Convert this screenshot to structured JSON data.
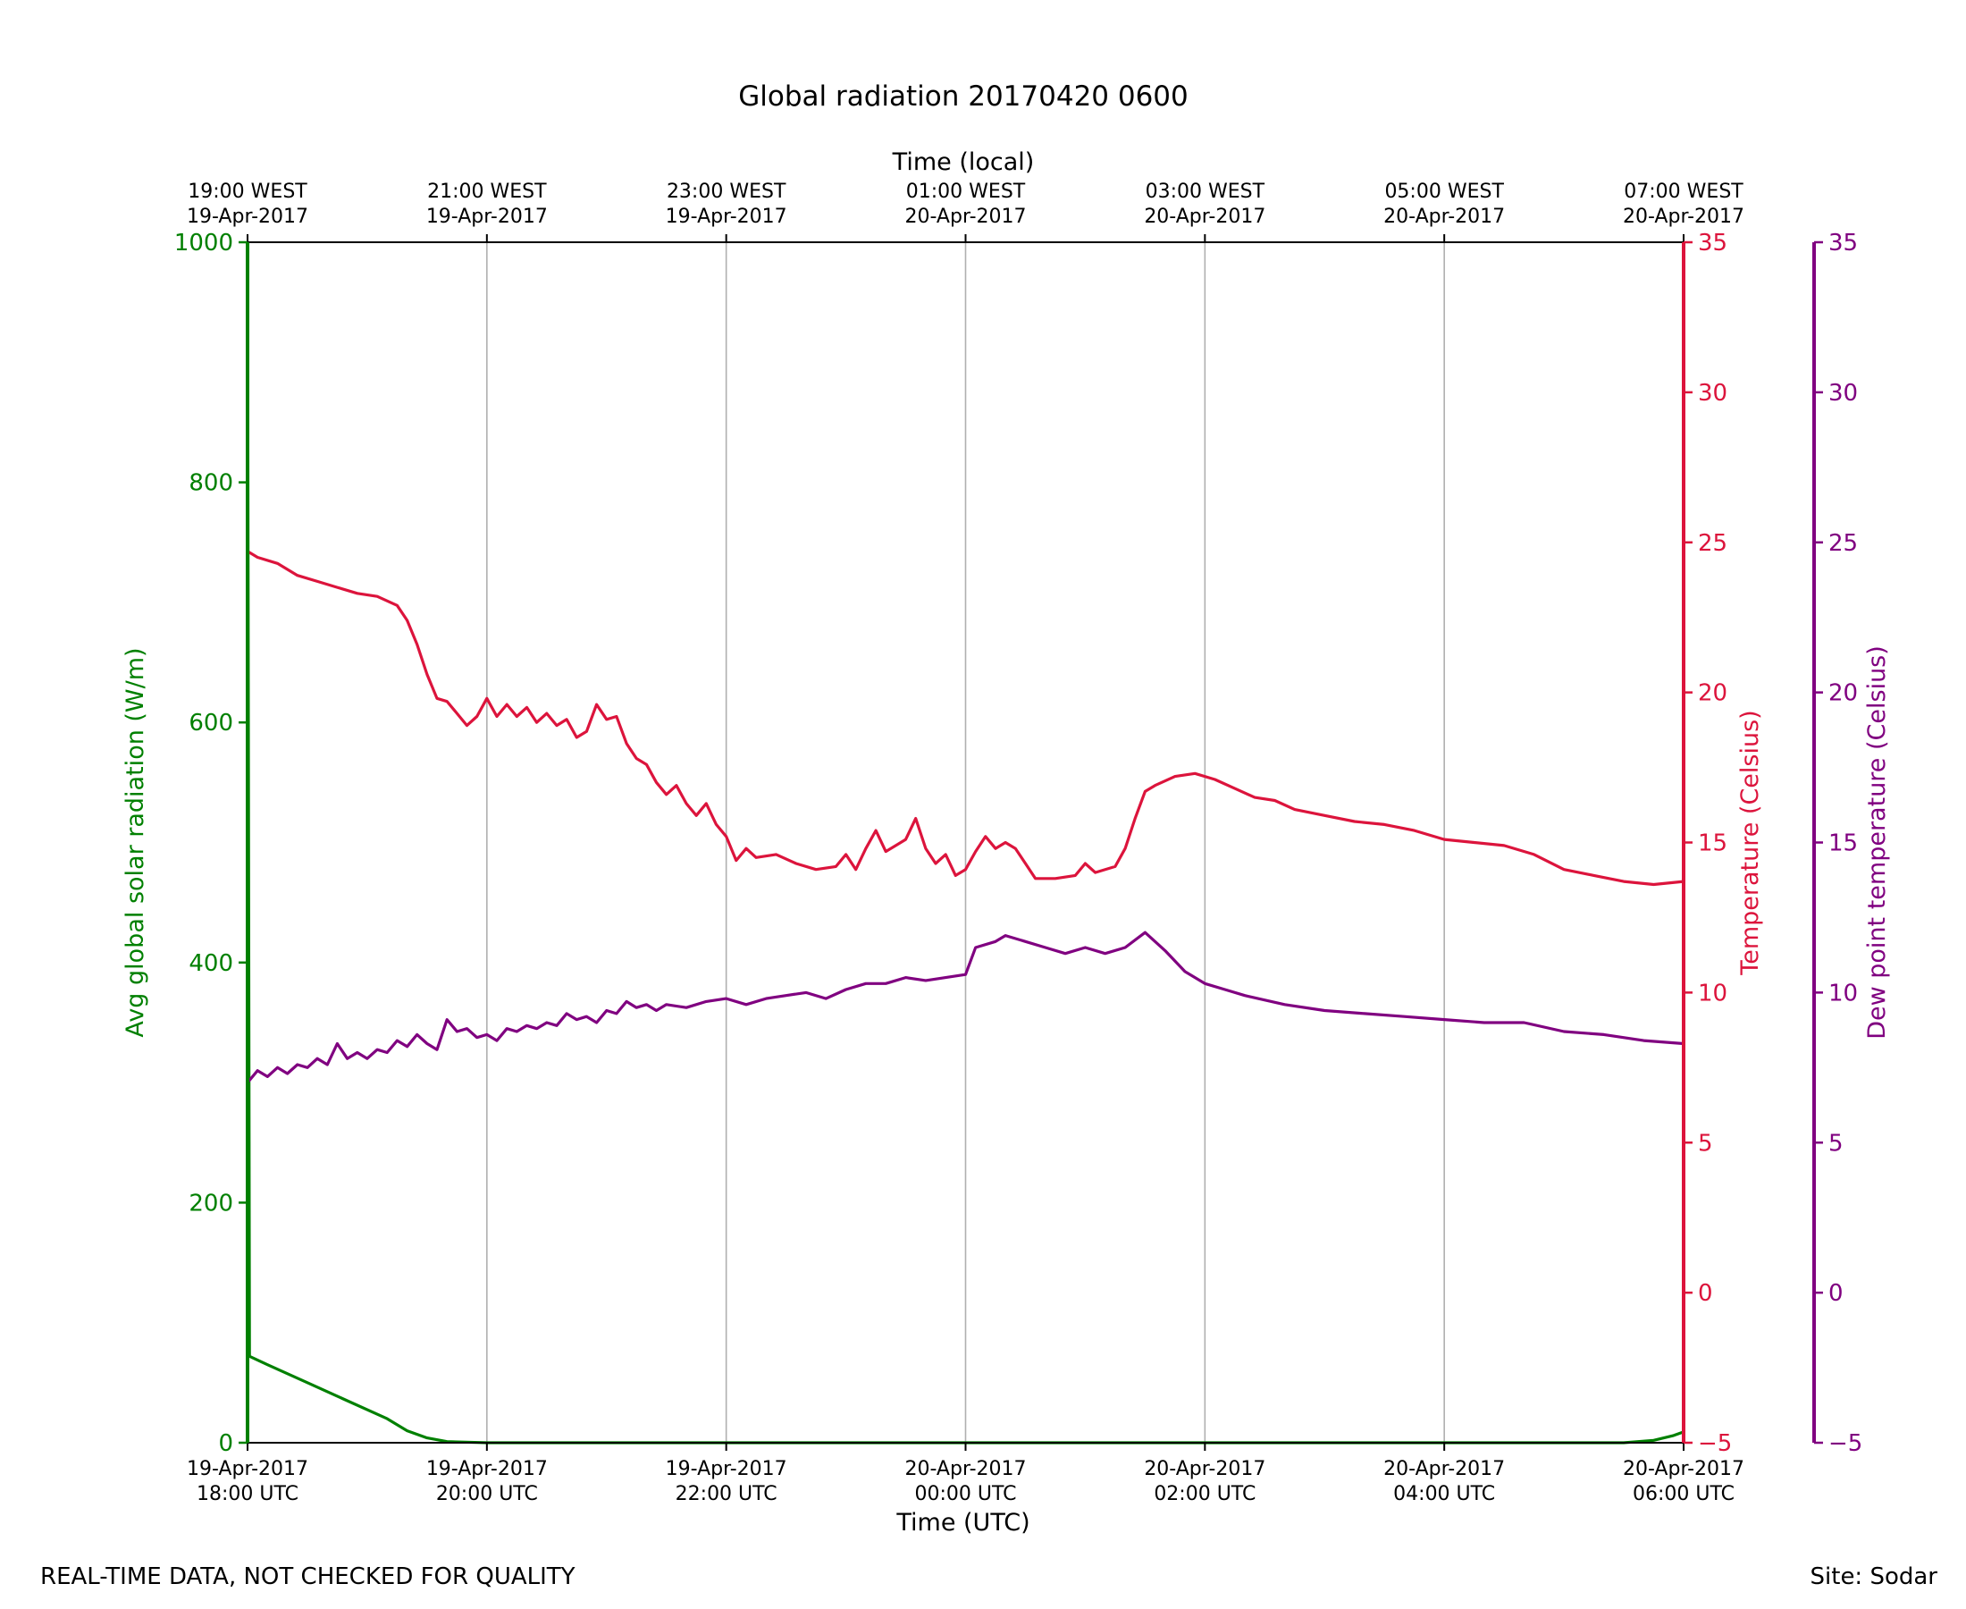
{
  "footer": {
    "note": "REAL-TIME DATA, NOT CHECKED FOR QUALITY",
    "site": "Site: Sodar"
  },
  "chart_data": {
    "type": "line",
    "title": "Global radiation 20170420 0600",
    "xlabel": "Time (UTC)",
    "x2label": "Time (local)",
    "xlim": [
      "2017-04-19T18:00",
      "2017-04-20T06:00"
    ],
    "x_ticks": [
      {
        "x": "2017-04-19T18:00",
        "label": [
          "19-Apr-2017",
          "18:00 UTC"
        ]
      },
      {
        "x": "2017-04-19T20:00",
        "label": [
          "19-Apr-2017",
          "20:00 UTC"
        ]
      },
      {
        "x": "2017-04-19T22:00",
        "label": [
          "19-Apr-2017",
          "22:00 UTC"
        ]
      },
      {
        "x": "2017-04-20T00:00",
        "label": [
          "20-Apr-2017",
          "00:00 UTC"
        ]
      },
      {
        "x": "2017-04-20T02:00",
        "label": [
          "20-Apr-2017",
          "02:00 UTC"
        ]
      },
      {
        "x": "2017-04-20T04:00",
        "label": [
          "20-Apr-2017",
          "04:00 UTC"
        ]
      },
      {
        "x": "2017-04-20T06:00",
        "label": [
          "20-Apr-2017",
          "06:00 UTC"
        ]
      }
    ],
    "x2_ticks": [
      {
        "x": "2017-04-19T18:00",
        "label": [
          "19:00 WEST",
          "19-Apr-2017"
        ]
      },
      {
        "x": "2017-04-19T20:00",
        "label": [
          "21:00 WEST",
          "19-Apr-2017"
        ]
      },
      {
        "x": "2017-04-19T22:00",
        "label": [
          "23:00 WEST",
          "19-Apr-2017"
        ]
      },
      {
        "x": "2017-04-20T00:00",
        "label": [
          "01:00 WEST",
          "20-Apr-2017"
        ]
      },
      {
        "x": "2017-04-20T02:00",
        "label": [
          "03:00 WEST",
          "20-Apr-2017"
        ]
      },
      {
        "x": "2017-04-20T04:00",
        "label": [
          "05:00 WEST",
          "20-Apr-2017"
        ]
      },
      {
        "x": "2017-04-20T06:00",
        "label": [
          "07:00 WEST",
          "20-Apr-2017"
        ]
      }
    ],
    "grid": "vertical",
    "axes": [
      {
        "id": "radiation",
        "side": "left",
        "label": "Avg global solar radiation (W/m)",
        "ylim": [
          0,
          1000
        ],
        "ticks": [
          0,
          200,
          400,
          600,
          800,
          1000
        ],
        "color": "#008000"
      },
      {
        "id": "temperature",
        "side": "right",
        "label": "Temperature (Celsius)",
        "ylim": [
          -5,
          35
        ],
        "ticks": [
          -5,
          0,
          5,
          10,
          15,
          20,
          25,
          30,
          35
        ],
        "color": "#dc143c"
      },
      {
        "id": "dewpoint",
        "side": "right-outer",
        "label": "Dew point temperature (Celsius)",
        "ylim": [
          -5,
          35
        ],
        "ticks": [
          -5,
          0,
          5,
          10,
          15,
          20,
          25,
          30,
          35
        ],
        "color": "#800080"
      }
    ],
    "series": [
      {
        "name": "Avg global solar radiation",
        "axis": "radiation",
        "color": "#008000",
        "points": [
          [
            "2017-04-19T18:00",
            1000
          ],
          [
            "2017-04-19T18:01",
            72
          ],
          [
            "2017-04-19T18:10",
            65
          ],
          [
            "2017-04-19T18:30",
            50
          ],
          [
            "2017-04-19T18:50",
            35
          ],
          [
            "2017-04-19T19:10",
            20
          ],
          [
            "2017-04-19T19:20",
            10
          ],
          [
            "2017-04-19T19:30",
            4
          ],
          [
            "2017-04-19T19:40",
            1
          ],
          [
            "2017-04-19T20:00",
            0
          ],
          [
            "2017-04-20T05:30",
            0
          ],
          [
            "2017-04-20T05:45",
            2
          ],
          [
            "2017-04-20T05:55",
            6
          ],
          [
            "2017-04-20T06:00",
            9
          ]
        ]
      },
      {
        "name": "Temperature",
        "axis": "temperature",
        "color": "#dc143c",
        "points": [
          [
            "2017-04-19T18:00",
            24.7
          ],
          [
            "2017-04-19T18:05",
            24.5
          ],
          [
            "2017-04-19T18:15",
            24.3
          ],
          [
            "2017-04-19T18:25",
            23.9
          ],
          [
            "2017-04-19T18:35",
            23.7
          ],
          [
            "2017-04-19T18:45",
            23.5
          ],
          [
            "2017-04-19T18:55",
            23.3
          ],
          [
            "2017-04-19T19:05",
            23.2
          ],
          [
            "2017-04-19T19:15",
            22.9
          ],
          [
            "2017-04-19T19:20",
            22.4
          ],
          [
            "2017-04-19T19:25",
            21.6
          ],
          [
            "2017-04-19T19:30",
            20.6
          ],
          [
            "2017-04-19T19:35",
            19.8
          ],
          [
            "2017-04-19T19:40",
            19.7
          ],
          [
            "2017-04-19T19:45",
            19.3
          ],
          [
            "2017-04-19T19:50",
            18.9
          ],
          [
            "2017-04-19T19:55",
            19.2
          ],
          [
            "2017-04-19T20:00",
            19.8
          ],
          [
            "2017-04-19T20:05",
            19.2
          ],
          [
            "2017-04-19T20:10",
            19.6
          ],
          [
            "2017-04-19T20:15",
            19.2
          ],
          [
            "2017-04-19T20:20",
            19.5
          ],
          [
            "2017-04-19T20:25",
            19.0
          ],
          [
            "2017-04-19T20:30",
            19.3
          ],
          [
            "2017-04-19T20:35",
            18.9
          ],
          [
            "2017-04-19T20:40",
            19.1
          ],
          [
            "2017-04-19T20:45",
            18.5
          ],
          [
            "2017-04-19T20:50",
            18.7
          ],
          [
            "2017-04-19T20:55",
            19.6
          ],
          [
            "2017-04-19T21:00",
            19.1
          ],
          [
            "2017-04-19T21:05",
            19.2
          ],
          [
            "2017-04-19T21:10",
            18.3
          ],
          [
            "2017-04-19T21:15",
            17.8
          ],
          [
            "2017-04-19T21:20",
            17.6
          ],
          [
            "2017-04-19T21:25",
            17.0
          ],
          [
            "2017-04-19T21:30",
            16.6
          ],
          [
            "2017-04-19T21:35",
            16.9
          ],
          [
            "2017-04-19T21:40",
            16.3
          ],
          [
            "2017-04-19T21:45",
            15.9
          ],
          [
            "2017-04-19T21:50",
            16.3
          ],
          [
            "2017-04-19T21:55",
            15.6
          ],
          [
            "2017-04-19T22:00",
            15.2
          ],
          [
            "2017-04-19T22:05",
            14.4
          ],
          [
            "2017-04-19T22:10",
            14.8
          ],
          [
            "2017-04-19T22:15",
            14.5
          ],
          [
            "2017-04-19T22:25",
            14.6
          ],
          [
            "2017-04-19T22:35",
            14.3
          ],
          [
            "2017-04-19T22:45",
            14.1
          ],
          [
            "2017-04-19T22:55",
            14.2
          ],
          [
            "2017-04-19T23:00",
            14.6
          ],
          [
            "2017-04-19T23:05",
            14.1
          ],
          [
            "2017-04-19T23:10",
            14.8
          ],
          [
            "2017-04-19T23:15",
            15.4
          ],
          [
            "2017-04-19T23:20",
            14.7
          ],
          [
            "2017-04-19T23:25",
            14.9
          ],
          [
            "2017-04-19T23:30",
            15.1
          ],
          [
            "2017-04-19T23:35",
            15.8
          ],
          [
            "2017-04-19T23:40",
            14.8
          ],
          [
            "2017-04-19T23:45",
            14.3
          ],
          [
            "2017-04-19T23:50",
            14.6
          ],
          [
            "2017-04-19T23:55",
            13.9
          ],
          [
            "2017-04-20T00:00",
            14.1
          ],
          [
            "2017-04-20T00:05",
            14.7
          ],
          [
            "2017-04-20T00:10",
            15.2
          ],
          [
            "2017-04-20T00:15",
            14.8
          ],
          [
            "2017-04-20T00:20",
            15.0
          ],
          [
            "2017-04-20T00:25",
            14.8
          ],
          [
            "2017-04-20T00:30",
            14.3
          ],
          [
            "2017-04-20T00:35",
            13.8
          ],
          [
            "2017-04-20T00:45",
            13.8
          ],
          [
            "2017-04-20T00:55",
            13.9
          ],
          [
            "2017-04-20T01:00",
            14.3
          ],
          [
            "2017-04-20T01:05",
            14.0
          ],
          [
            "2017-04-20T01:15",
            14.2
          ],
          [
            "2017-04-20T01:20",
            14.8
          ],
          [
            "2017-04-20T01:25",
            15.8
          ],
          [
            "2017-04-20T01:30",
            16.7
          ],
          [
            "2017-04-20T01:35",
            16.9
          ],
          [
            "2017-04-20T01:45",
            17.2
          ],
          [
            "2017-04-20T01:55",
            17.3
          ],
          [
            "2017-04-20T02:05",
            17.1
          ],
          [
            "2017-04-20T02:15",
            16.8
          ],
          [
            "2017-04-20T02:25",
            16.5
          ],
          [
            "2017-04-20T02:35",
            16.4
          ],
          [
            "2017-04-20T02:45",
            16.1
          ],
          [
            "2017-04-20T03:00",
            15.9
          ],
          [
            "2017-04-20T03:15",
            15.7
          ],
          [
            "2017-04-20T03:30",
            15.6
          ],
          [
            "2017-04-20T03:45",
            15.4
          ],
          [
            "2017-04-20T04:00",
            15.1
          ],
          [
            "2017-04-20T04:15",
            15.0
          ],
          [
            "2017-04-20T04:30",
            14.9
          ],
          [
            "2017-04-20T04:45",
            14.6
          ],
          [
            "2017-04-20T05:00",
            14.1
          ],
          [
            "2017-04-20T05:15",
            13.9
          ],
          [
            "2017-04-20T05:30",
            13.7
          ],
          [
            "2017-04-20T05:45",
            13.6
          ],
          [
            "2017-04-20T06:00",
            13.7
          ]
        ]
      },
      {
        "name": "Dew point temperature",
        "axis": "dewpoint",
        "color": "#800080",
        "points": [
          [
            "2017-04-19T18:00",
            7.0
          ],
          [
            "2017-04-19T18:05",
            7.4
          ],
          [
            "2017-04-19T18:10",
            7.2
          ],
          [
            "2017-04-19T18:15",
            7.5
          ],
          [
            "2017-04-19T18:20",
            7.3
          ],
          [
            "2017-04-19T18:25",
            7.6
          ],
          [
            "2017-04-19T18:30",
            7.5
          ],
          [
            "2017-04-19T18:35",
            7.8
          ],
          [
            "2017-04-19T18:40",
            7.6
          ],
          [
            "2017-04-19T18:45",
            8.3
          ],
          [
            "2017-04-19T18:50",
            7.8
          ],
          [
            "2017-04-19T18:55",
            8.0
          ],
          [
            "2017-04-19T19:00",
            7.8
          ],
          [
            "2017-04-19T19:05",
            8.1
          ],
          [
            "2017-04-19T19:10",
            8.0
          ],
          [
            "2017-04-19T19:15",
            8.4
          ],
          [
            "2017-04-19T19:20",
            8.2
          ],
          [
            "2017-04-19T19:25",
            8.6
          ],
          [
            "2017-04-19T19:30",
            8.3
          ],
          [
            "2017-04-19T19:35",
            8.1
          ],
          [
            "2017-04-19T19:40",
            9.1
          ],
          [
            "2017-04-19T19:45",
            8.7
          ],
          [
            "2017-04-19T19:50",
            8.8
          ],
          [
            "2017-04-19T19:55",
            8.5
          ],
          [
            "2017-04-19T20:00",
            8.6
          ],
          [
            "2017-04-19T20:05",
            8.4
          ],
          [
            "2017-04-19T20:10",
            8.8
          ],
          [
            "2017-04-19T20:15",
            8.7
          ],
          [
            "2017-04-19T20:20",
            8.9
          ],
          [
            "2017-04-19T20:25",
            8.8
          ],
          [
            "2017-04-19T20:30",
            9.0
          ],
          [
            "2017-04-19T20:35",
            8.9
          ],
          [
            "2017-04-19T20:40",
            9.3
          ],
          [
            "2017-04-19T20:45",
            9.1
          ],
          [
            "2017-04-19T20:50",
            9.2
          ],
          [
            "2017-04-19T20:55",
            9.0
          ],
          [
            "2017-04-19T21:00",
            9.4
          ],
          [
            "2017-04-19T21:05",
            9.3
          ],
          [
            "2017-04-19T21:10",
            9.7
          ],
          [
            "2017-04-19T21:15",
            9.5
          ],
          [
            "2017-04-19T21:20",
            9.6
          ],
          [
            "2017-04-19T21:25",
            9.4
          ],
          [
            "2017-04-19T21:30",
            9.6
          ],
          [
            "2017-04-19T21:40",
            9.5
          ],
          [
            "2017-04-19T21:50",
            9.7
          ],
          [
            "2017-04-19T22:00",
            9.8
          ],
          [
            "2017-04-19T22:10",
            9.6
          ],
          [
            "2017-04-19T22:20",
            9.8
          ],
          [
            "2017-04-19T22:30",
            9.9
          ],
          [
            "2017-04-19T22:40",
            10.0
          ],
          [
            "2017-04-19T22:50",
            9.8
          ],
          [
            "2017-04-19T23:00",
            10.1
          ],
          [
            "2017-04-19T23:10",
            10.3
          ],
          [
            "2017-04-19T23:20",
            10.3
          ],
          [
            "2017-04-19T23:30",
            10.5
          ],
          [
            "2017-04-19T23:40",
            10.4
          ],
          [
            "2017-04-19T23:50",
            10.5
          ],
          [
            "2017-04-20T00:00",
            10.6
          ],
          [
            "2017-04-20T00:05",
            11.5
          ],
          [
            "2017-04-20T00:15",
            11.7
          ],
          [
            "2017-04-20T00:20",
            11.9
          ],
          [
            "2017-04-20T00:30",
            11.7
          ],
          [
            "2017-04-20T00:40",
            11.5
          ],
          [
            "2017-04-20T00:50",
            11.3
          ],
          [
            "2017-04-20T01:00",
            11.5
          ],
          [
            "2017-04-20T01:10",
            11.3
          ],
          [
            "2017-04-20T01:20",
            11.5
          ],
          [
            "2017-04-20T01:30",
            12.0
          ],
          [
            "2017-04-20T01:40",
            11.4
          ],
          [
            "2017-04-20T01:50",
            10.7
          ],
          [
            "2017-04-20T02:00",
            10.3
          ],
          [
            "2017-04-20T02:10",
            10.1
          ],
          [
            "2017-04-20T02:20",
            9.9
          ],
          [
            "2017-04-20T02:40",
            9.6
          ],
          [
            "2017-04-20T03:00",
            9.4
          ],
          [
            "2017-04-20T03:20",
            9.3
          ],
          [
            "2017-04-20T03:40",
            9.2
          ],
          [
            "2017-04-20T04:00",
            9.1
          ],
          [
            "2017-04-20T04:20",
            9.0
          ],
          [
            "2017-04-20T04:40",
            9.0
          ],
          [
            "2017-04-20T05:00",
            8.7
          ],
          [
            "2017-04-20T05:20",
            8.6
          ],
          [
            "2017-04-20T05:40",
            8.4
          ],
          [
            "2017-04-20T06:00",
            8.3
          ]
        ]
      }
    ]
  }
}
